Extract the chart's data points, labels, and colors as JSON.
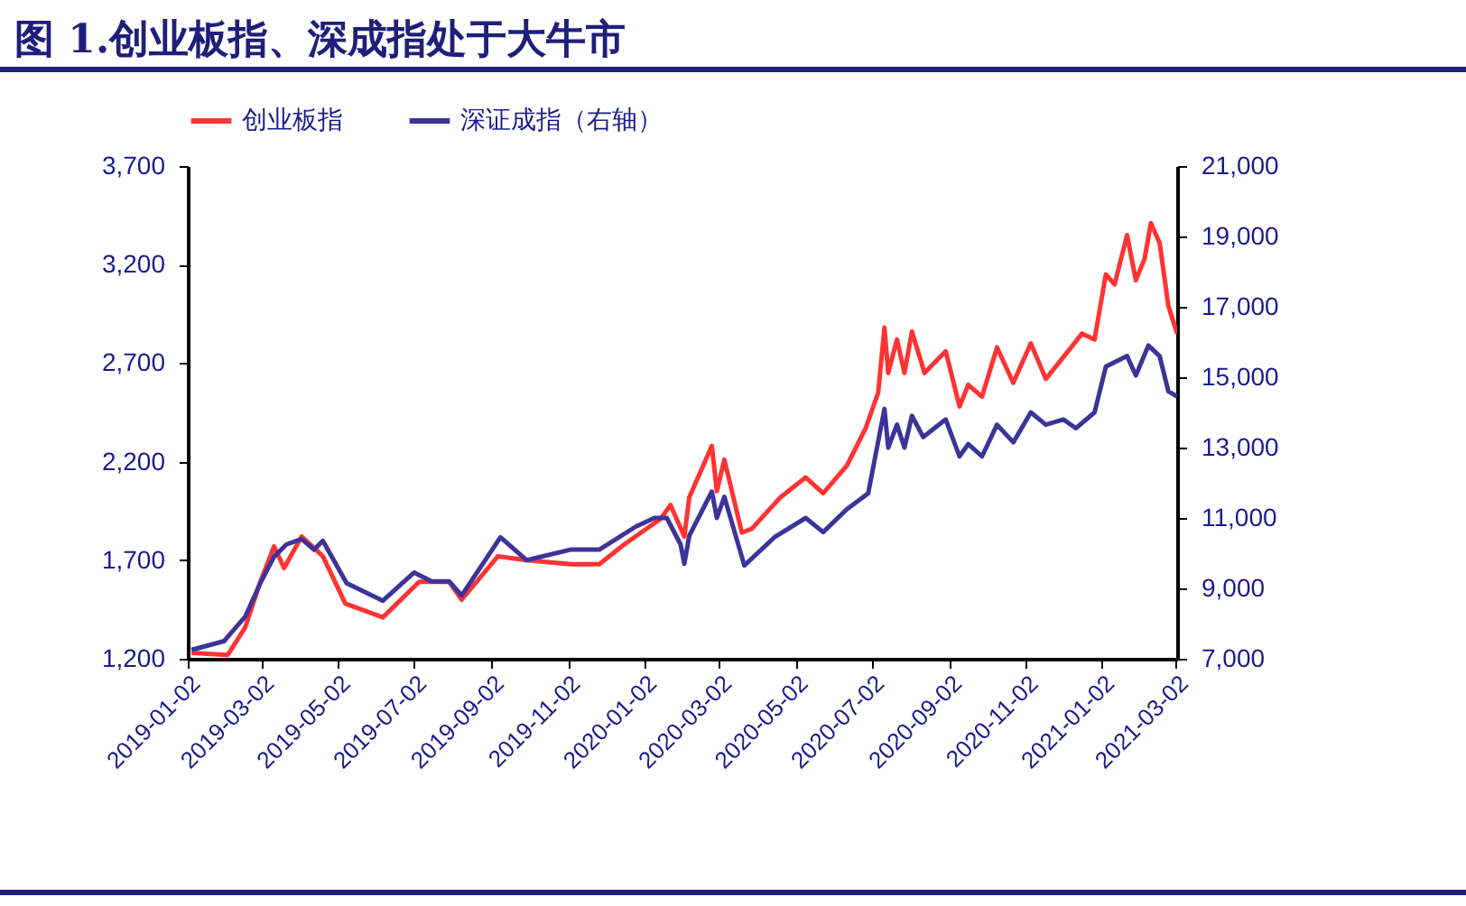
{
  "chart_data": {
    "type": "line",
    "title": "图 1.创业板指、深成指处于大牛市",
    "legend": "top",
    "grid": false,
    "marker": "none",
    "line_style": "solid",
    "xlim": [
      "2019-01-02",
      "2021-03-03"
    ],
    "xticks": [
      "2019-01-02",
      "2019-03-02",
      "2019-05-02",
      "2019-07-02",
      "2019-09-02",
      "2019-11-02",
      "2020-01-02",
      "2020-03-02",
      "2020-05-02",
      "2020-07-02",
      "2020-09-02",
      "2020-11-02",
      "2021-01-02",
      "2021-03-02"
    ],
    "ylim": [
      1200,
      3700
    ],
    "yticks": [
      {
        "value": 1200,
        "label": "1,200"
      },
      {
        "value": 1700,
        "label": "1,700"
      },
      {
        "value": 2200,
        "label": "2,200"
      },
      {
        "value": 2700,
        "label": "2,700"
      },
      {
        "value": 3200,
        "label": "3,200"
      },
      {
        "value": 3700,
        "label": "3,700"
      }
    ],
    "y2lim": [
      7000,
      21000
    ],
    "y2ticks": [
      {
        "value": 7000,
        "label": "7,000"
      },
      {
        "value": 9000,
        "label": "9,000"
      },
      {
        "value": 11000,
        "label": "11,000"
      },
      {
        "value": 13000,
        "label": "13,000"
      },
      {
        "value": 15000,
        "label": "15,000"
      },
      {
        "value": 17000,
        "label": "17,000"
      },
      {
        "value": 19000,
        "label": "19,000"
      },
      {
        "value": 21000,
        "label": "21,000"
      }
    ],
    "series": [
      {
        "name": "创业板指",
        "color": "#ff3333",
        "x": [
          "2019-01-05",
          "2019-02-03",
          "2019-02-17",
          "2019-03-01",
          "2019-03-12",
          "2019-03-20",
          "2019-04-03",
          "2019-04-20",
          "2019-05-08",
          "2019-06-07",
          "2019-07-06",
          "2019-07-30",
          "2019-08-09",
          "2019-09-07",
          "2019-09-30",
          "2019-11-04",
          "2019-11-27",
          "2019-12-17",
          "2020-01-15",
          "2020-01-23",
          "2020-02-03",
          "2020-02-07",
          "2020-02-25",
          "2020-02-29",
          "2020-03-06",
          "2020-03-20",
          "2020-03-28",
          "2020-04-20",
          "2020-05-10",
          "2020-05-24",
          "2020-06-12",
          "2020-06-27",
          "2020-07-07",
          "2020-07-12",
          "2020-07-15",
          "2020-07-22",
          "2020-07-28",
          "2020-08-03",
          "2020-08-13",
          "2020-08-30",
          "2020-09-10",
          "2020-09-17",
          "2020-09-28",
          "2020-10-10",
          "2020-10-23",
          "2020-11-06",
          "2020-11-18",
          "2020-12-02",
          "2020-12-17",
          "2020-12-27",
          "2021-01-05",
          "2021-01-12",
          "2021-01-22",
          "2021-01-29",
          "2021-02-05",
          "2021-02-10",
          "2021-02-17",
          "2021-02-24",
          "2021-03-03"
        ],
        "values": [
          1230,
          1220,
          1360,
          1590,
          1770,
          1660,
          1820,
          1720,
          1480,
          1410,
          1590,
          1590,
          1500,
          1720,
          1700,
          1680,
          1680,
          1780,
          1910,
          1980,
          1820,
          2020,
          2280,
          2050,
          2210,
          1840,
          1860,
          2020,
          2120,
          2040,
          2180,
          2370,
          2550,
          2880,
          2650,
          2820,
          2650,
          2860,
          2650,
          2760,
          2480,
          2590,
          2530,
          2780,
          2600,
          2800,
          2620,
          2730,
          2850,
          2820,
          3150,
          3100,
          3350,
          3120,
          3230,
          3410,
          3310,
          2990,
          2850
        ]
      },
      {
        "name": "深证成指（右轴）",
        "color": "#3d3399",
        "axis": "y2",
        "x": [
          "2019-01-05",
          "2019-01-31",
          "2019-02-17",
          "2019-03-01",
          "2019-03-12",
          "2019-03-22",
          "2019-04-03",
          "2019-04-13",
          "2019-04-20",
          "2019-05-09",
          "2019-06-07",
          "2019-07-02",
          "2019-07-16",
          "2019-07-30",
          "2019-08-09",
          "2019-09-09",
          "2019-09-30",
          "2019-11-04",
          "2019-11-27",
          "2019-12-26",
          "2020-01-10",
          "2020-01-20",
          "2020-01-31",
          "2020-02-03",
          "2020-02-07",
          "2020-02-25",
          "2020-02-29",
          "2020-03-06",
          "2020-03-22",
          "2020-04-15",
          "2020-05-10",
          "2020-05-24",
          "2020-06-12",
          "2020-06-29",
          "2020-07-12",
          "2020-07-15",
          "2020-07-22",
          "2020-07-28",
          "2020-08-03",
          "2020-08-12",
          "2020-08-30",
          "2020-09-10",
          "2020-09-17",
          "2020-09-28",
          "2020-10-10",
          "2020-10-23",
          "2020-11-06",
          "2020-11-18",
          "2020-12-02",
          "2020-12-12",
          "2020-12-27",
          "2021-01-05",
          "2021-01-22",
          "2021-01-29",
          "2021-02-08",
          "2021-02-17",
          "2021-02-24",
          "2021-03-03"
        ],
        "values": [
          7250,
          7500,
          8200,
          9150,
          9900,
          10250,
          10400,
          10100,
          10350,
          9150,
          8650,
          9450,
          9200,
          9200,
          8800,
          10450,
          9800,
          10100,
          10100,
          10750,
          11000,
          11000,
          10250,
          9700,
          10500,
          11750,
          11000,
          11600,
          9650,
          10450,
          11000,
          10600,
          11250,
          11700,
          14100,
          13000,
          13650,
          13000,
          13900,
          13300,
          13800,
          12750,
          13100,
          12750,
          13650,
          13150,
          14000,
          13650,
          13800,
          13550,
          14000,
          15300,
          15600,
          15050,
          15900,
          15600,
          14600,
          14450
        ]
      }
    ]
  }
}
